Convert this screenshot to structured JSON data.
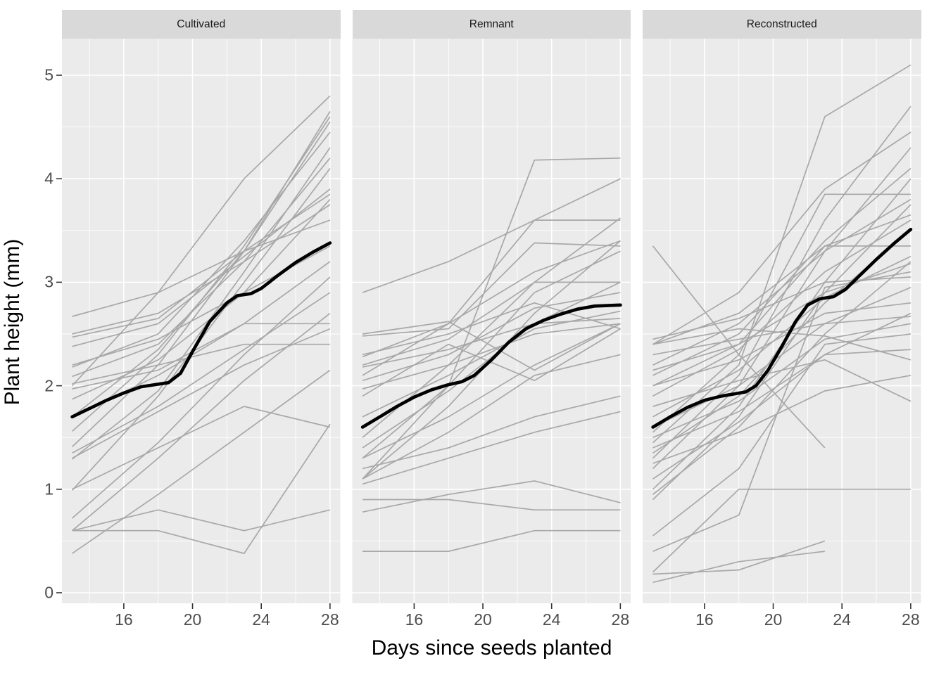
{
  "chart_data": {
    "type": "line",
    "description": "Faceted spaghetti plot of individual plant growth trajectories (grey lines) with a bold black mean smoother per facet",
    "x": {
      "label": "Days since seeds planted",
      "ticks": [
        16,
        20,
        24,
        28
      ],
      "minor_ticks": [
        14,
        18,
        22,
        26
      ],
      "domain": [
        12.4,
        28.6
      ],
      "measurement_days": [
        13,
        18,
        23,
        28
      ]
    },
    "y": {
      "label": "Plant height (mm)",
      "ticks": [
        0,
        1,
        2,
        3,
        4,
        5
      ],
      "minor_ticks": [
        0.5,
        1.5,
        2.5,
        3.5,
        4.5
      ],
      "domain": [
        -0.1,
        5.35
      ]
    },
    "legend": "none",
    "grid": "on",
    "facets": [
      {
        "label": "Cultivated",
        "series": [
          {
            "values": [
              2.0,
              2.9,
              4.0,
              4.8
            ]
          },
          {
            "values": [
              1.7,
              2.35,
              3.3,
              4.65
            ]
          },
          {
            "values": [
              1.56,
              2.3,
              3.35,
              4.6
            ]
          },
          {
            "values": [
              1.41,
              2.2,
              3.3,
              4.55
            ]
          },
          {
            "values": [
              2.18,
              2.5,
              3.4,
              4.45
            ]
          },
          {
            "values": [
              1.29,
              1.95,
              3.1,
              4.3
            ]
          },
          {
            "values": [
              2.09,
              2.4,
              3.2,
              4.2
            ]
          },
          {
            "values": [
              0.99,
              1.9,
              3.0,
              4.1
            ]
          },
          {
            "values": [
              2.38,
              2.6,
              3.25,
              3.9
            ]
          },
          {
            "values": [
              2.47,
              2.65,
              3.3,
              3.85
            ]
          },
          {
            "values": [
              1.87,
              2.25,
              2.9,
              3.8
            ]
          },
          {
            "values": [
              2.5,
              2.7,
              3.2,
              3.75
            ]
          },
          {
            "values": [
              2.67,
              2.9,
              3.3,
              3.6
            ]
          },
          {
            "values": [
              2.2,
              2.45,
              2.9,
              3.35
            ]
          },
          {
            "values": [
              1.7,
              2.1,
              2.6,
              3.2
            ]
          },
          {
            "values": [
              0.72,
              1.45,
              2.3,
              3.05
            ]
          },
          {
            "values": [
              1.35,
              1.8,
              2.35,
              2.9
            ]
          },
          {
            "values": [
              0.6,
              1.3,
              2.05,
              2.7
            ]
          },
          {
            "values": [
              1.97,
              2.15,
              2.6,
              2.6
            ]
          },
          {
            "values": [
              1.3,
              1.75,
              2.2,
              2.55
            ]
          },
          {
            "values": [
              2.02,
              2.2,
              2.4,
              2.4
            ]
          },
          {
            "values": [
              0.38,
              0.95,
              1.55,
              2.15
            ]
          },
          {
            "values": [
              0.6,
              0.8,
              0.6,
              0.8
            ]
          },
          {
            "values": [
              0.6,
              0.6,
              0.38,
              1.63
            ]
          },
          {
            "values": [
              1.0,
              1.4,
              1.8,
              1.6
            ]
          }
        ],
        "smoother": [
          [
            13,
            1.7
          ],
          [
            14,
            1.78
          ],
          [
            15,
            1.86
          ],
          [
            16,
            1.93
          ],
          [
            17,
            1.99
          ],
          [
            17.8,
            2.01
          ],
          [
            18.6,
            2.03
          ],
          [
            19.3,
            2.12
          ],
          [
            20,
            2.33
          ],
          [
            21,
            2.62
          ],
          [
            22,
            2.8
          ],
          [
            22.6,
            2.87
          ],
          [
            23.4,
            2.89
          ],
          [
            24,
            2.94
          ],
          [
            25,
            3.07
          ],
          [
            26,
            3.19
          ],
          [
            27,
            3.29
          ],
          [
            28,
            3.38
          ]
        ]
      },
      {
        "label": "Remnant",
        "series": [
          {
            "values": [
              1.1,
              2.0,
              4.18,
              4.2
            ]
          },
          {
            "values": [
              2.9,
              3.2,
              3.6,
              4.0
            ]
          },
          {
            "values": [
              2.1,
              2.6,
              3.6,
              3.6
            ]
          },
          {
            "values": [
              1.5,
              2.2,
              3.0,
              3.62
            ]
          },
          {
            "values": [
              2.28,
              2.6,
              3.1,
              3.4
            ]
          },
          {
            "values": [
              1.1,
              1.8,
              2.7,
              3.4
            ]
          },
          {
            "values": [
              2.48,
              2.55,
              3.38,
              3.35
            ]
          },
          {
            "values": [
              1.3,
              2.0,
              2.9,
              3.3
            ]
          },
          {
            "values": [
              2.2,
              2.45,
              3.0,
              3.0
            ]
          },
          {
            "values": [
              1.4,
              1.95,
              2.6,
              3.0
            ]
          },
          {
            "values": [
              2.05,
              2.3,
              2.75,
              2.9
            ]
          },
          {
            "values": [
              1.7,
              2.1,
              2.55,
              2.72
            ]
          },
          {
            "values": [
              2.18,
              2.35,
              2.6,
              2.65
            ]
          },
          {
            "values": [
              1.97,
              2.2,
              2.5,
              2.6
            ]
          },
          {
            "values": [
              2.5,
              2.62,
              2.15,
              2.6
            ]
          },
          {
            "values": [
              1.9,
              2.4,
              2.05,
              2.55
            ]
          },
          {
            "values": [
              2.3,
              2.5,
              2.8,
              2.55
            ]
          },
          {
            "values": [
              1.1,
              1.55,
              2.1,
              2.3
            ]
          },
          {
            "values": [
              1.3,
              1.7,
              2.2,
              2.6
            ]
          },
          {
            "values": [
              1.2,
              1.4,
              1.7,
              1.9
            ]
          },
          {
            "values": [
              1.05,
              1.3,
              1.55,
              1.75
            ]
          },
          {
            "values": [
              0.78,
              0.95,
              1.08,
              0.87
            ]
          },
          {
            "values": [
              0.9,
              0.9,
              0.8,
              0.8
            ]
          },
          {
            "values": [
              0.4,
              0.4,
              0.6,
              0.6
            ]
          }
        ],
        "smoother": [
          [
            13,
            1.6
          ],
          [
            14,
            1.7
          ],
          [
            15,
            1.8
          ],
          [
            16,
            1.89
          ],
          [
            17,
            1.96
          ],
          [
            18,
            2.01
          ],
          [
            18.8,
            2.04
          ],
          [
            19.5,
            2.1
          ],
          [
            20.5,
            2.25
          ],
          [
            21.5,
            2.42
          ],
          [
            22.5,
            2.55
          ],
          [
            23.5,
            2.63
          ],
          [
            24.5,
            2.69
          ],
          [
            25.5,
            2.74
          ],
          [
            26.5,
            2.77
          ],
          [
            28,
            2.78
          ]
        ]
      },
      {
        "label": "Reconstructed",
        "series": [
          {
            "values": [
              1.45,
              2.2,
              4.6,
              5.1
            ]
          },
          {
            "values": [
              1.3,
              2.1,
              3.6,
              4.7
            ]
          },
          {
            "values": [
              2.4,
              2.9,
              3.9,
              4.45
            ]
          },
          {
            "values": [
              1.2,
              2.0,
              3.3,
              4.3
            ]
          },
          {
            "values": [
              2.1,
              2.5,
              3.4,
              4.1
            ]
          },
          {
            "values": [
              1.0,
              1.8,
              3.0,
              4.0
            ]
          },
          {
            "values": [
              1.55,
              2.3,
              3.85,
              3.85
            ]
          },
          {
            "values": [
              2.2,
              2.6,
              3.3,
              3.8
            ]
          },
          {
            "values": [
              0.9,
              1.7,
              2.9,
              3.75
            ]
          },
          {
            "values": [
              2.4,
              2.7,
              3.35,
              3.65
            ]
          },
          {
            "values": [
              1.9,
              2.35,
              3.1,
              3.6
            ]
          },
          {
            "values": [
              1.35,
              1.9,
              2.8,
              3.5
            ]
          },
          {
            "values": [
              2.0,
              2.4,
              3.35,
              3.35
            ]
          },
          {
            "values": [
              1.7,
              2.15,
              2.85,
              3.25
            ]
          },
          {
            "values": [
              0.95,
              1.6,
              2.5,
              3.2
            ]
          },
          {
            "values": [
              2.45,
              2.65,
              3.0,
              3.05
            ]
          },
          {
            "values": [
              1.6,
              2.0,
              2.6,
              2.95
            ]
          },
          {
            "values": [
              2.0,
              2.25,
              2.7,
              2.8
            ]
          },
          {
            "values": [
              1.1,
              1.65,
              2.3,
              2.7
            ]
          },
          {
            "values": [
              2.3,
              2.45,
              2.6,
              2.67
            ]
          },
          {
            "values": [
              1.5,
              1.85,
              2.45,
              2.6
            ]
          },
          {
            "values": [
              0.55,
              1.2,
              2.4,
              2.5
            ]
          },
          {
            "values": [
              2.4,
              2.55,
              2.48,
              2.25
            ]
          },
          {
            "values": [
              1.8,
              2.05,
              2.25,
              1.85
            ]
          },
          {
            "values": [
              3.35,
              2.3,
              1.4,
              null
            ]
          },
          {
            "values": [
              0.2,
              1.0,
              1.0,
              1.0
            ]
          },
          {
            "values": [
              0.18,
              0.22,
              0.5,
              null
            ]
          },
          {
            "values": [
              0.1,
              0.3,
              0.4,
              null
            ]
          },
          {
            "values": [
              1.4,
              1.75,
              2.3,
              2.35
            ]
          },
          {
            "values": [
              1.25,
              1.55,
              1.95,
              2.1
            ]
          },
          {
            "values": [
              2.15,
              2.4,
              2.9,
              3.18
            ]
          },
          {
            "values": [
              0.4,
              0.75,
              2.95,
              3.1
            ]
          }
        ],
        "smoother": [
          [
            13,
            1.6
          ],
          [
            14,
            1.7
          ],
          [
            15,
            1.79
          ],
          [
            16,
            1.86
          ],
          [
            17,
            1.9
          ],
          [
            17.7,
            1.92
          ],
          [
            18.4,
            1.94
          ],
          [
            19,
            2.0
          ],
          [
            19.7,
            2.15
          ],
          [
            20.5,
            2.38
          ],
          [
            21.3,
            2.62
          ],
          [
            22,
            2.78
          ],
          [
            22.7,
            2.84
          ],
          [
            23.5,
            2.86
          ],
          [
            24.2,
            2.93
          ],
          [
            25,
            3.06
          ],
          [
            26,
            3.22
          ],
          [
            27,
            3.37
          ],
          [
            28,
            3.51
          ]
        ]
      }
    ],
    "colors": {
      "panel_bg": "#ebebeb",
      "grid": "#ffffff",
      "strip_bg": "#d9d9d9",
      "strip_text": "#1a1a1a",
      "axis_text": "#4d4d4d",
      "tick_mark": "#333333",
      "series_line": "#a8a8a8",
      "smoother_line": "#000000"
    }
  }
}
